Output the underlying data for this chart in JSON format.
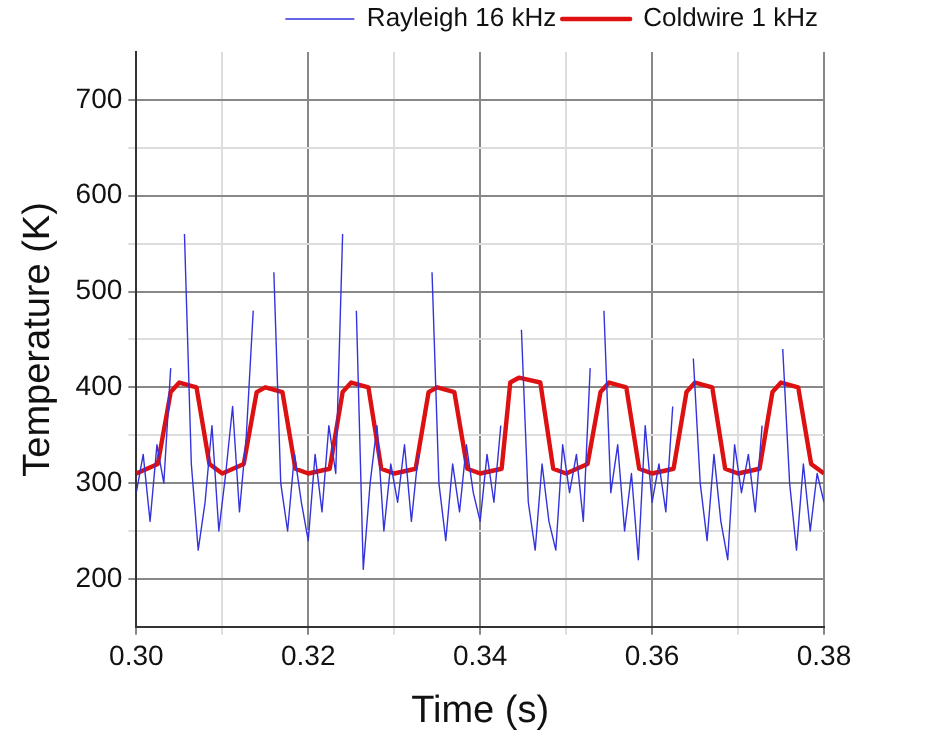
{
  "chart_data": {
    "type": "line",
    "xlabel": "Time (s)",
    "ylabel": "Temperature (K)",
    "xlim": [
      0.3,
      0.38
    ],
    "ylim": [
      150,
      750
    ],
    "xticks": [
      {
        "value": 0.3,
        "label": "0.30"
      },
      {
        "value": 0.31,
        "label": null
      },
      {
        "value": 0.32,
        "label": "0.32"
      },
      {
        "value": 0.33,
        "label": null
      },
      {
        "value": 0.34,
        "label": "0.34"
      },
      {
        "value": 0.35,
        "label": null
      },
      {
        "value": 0.36,
        "label": "0.36"
      },
      {
        "value": 0.37,
        "label": null
      },
      {
        "value": 0.38,
        "label": "0.38"
      }
    ],
    "yticks": [
      200,
      {
        "value": 250,
        "label": null
      },
      300,
      {
        "value": 350,
        "label": null
      },
      400,
      {
        "value": 450,
        "label": null
      },
      500,
      {
        "value": 550,
        "label": null
      },
      600,
      {
        "value": 650,
        "label": null
      },
      700
    ],
    "grid": true,
    "legend": "top right",
    "marker": "none",
    "series": [
      {
        "name": "Rayleigh 16 kHz",
        "color": "#3333dd",
        "x": [
          0.3,
          0.3008,
          0.3016,
          0.3024,
          0.3032,
          0.304,
          0.3048,
          0.3056,
          0.3064,
          0.3072,
          0.308,
          0.3088,
          0.3096,
          0.3104,
          0.3112,
          0.312,
          0.3128,
          0.3136,
          0.3144,
          0.3152,
          0.316,
          0.3168,
          0.3176,
          0.3184,
          0.3192,
          0.32,
          0.3208,
          0.3216,
          0.3224,
          0.3232,
          0.324,
          0.3248,
          0.3256,
          0.3264,
          0.3272,
          0.328,
          0.3288,
          0.3296,
          0.3304,
          0.3312,
          0.332,
          0.3328,
          0.3336,
          0.3344,
          0.3352,
          0.336,
          0.3368,
          0.3376,
          0.3384,
          0.3392,
          0.34,
          0.3408,
          0.3416,
          0.3424,
          0.3432,
          0.344,
          0.3448,
          0.3456,
          0.3464,
          0.3472,
          0.348,
          0.3488,
          0.3496,
          0.3504,
          0.3512,
          0.352,
          0.3528,
          0.3536,
          0.3544,
          0.3552,
          0.356,
          0.3568,
          0.3576,
          0.3584,
          0.3592,
          0.36,
          0.3608,
          0.3616,
          0.3624,
          0.3632,
          0.364,
          0.3648,
          0.3656,
          0.3664,
          0.3672,
          0.368,
          0.3688,
          0.3696,
          0.3704,
          0.3712,
          0.372,
          0.3728,
          0.3736,
          0.3744,
          0.3752,
          0.376,
          0.3768,
          0.3776,
          0.3784,
          0.3792,
          0.38
        ],
        "values": [
          290,
          330,
          260,
          340,
          300,
          420,
          null,
          560,
          320,
          230,
          280,
          360,
          250,
          310,
          380,
          270,
          350,
          480,
          null,
          null,
          520,
          300,
          250,
          330,
          280,
          240,
          330,
          270,
          360,
          310,
          560,
          null,
          480,
          210,
          300,
          360,
          250,
          320,
          280,
          340,
          260,
          330,
          null,
          520,
          300,
          240,
          320,
          270,
          340,
          290,
          260,
          330,
          280,
          360,
          null,
          null,
          460,
          280,
          230,
          320,
          260,
          230,
          340,
          290,
          330,
          260,
          420,
          null,
          480,
          290,
          340,
          250,
          310,
          220,
          360,
          280,
          320,
          270,
          380,
          null,
          null,
          430,
          300,
          240,
          330,
          260,
          220,
          340,
          290,
          330,
          270,
          360,
          null,
          null,
          440,
          300,
          230,
          320,
          250,
          310,
          280
        ]
      },
      {
        "name": "Coldwire 1 kHz",
        "color": "#dd1111",
        "x": [
          0.3,
          0.3025,
          0.304,
          0.305,
          0.307,
          0.3085,
          0.31,
          0.3125,
          0.314,
          0.315,
          0.317,
          0.3185,
          0.32,
          0.3225,
          0.324,
          0.325,
          0.327,
          0.3285,
          0.33,
          0.3325,
          0.334,
          0.335,
          0.337,
          0.3385,
          0.34,
          0.3425,
          0.3435,
          0.3445,
          0.347,
          0.3485,
          0.35,
          0.3525,
          0.354,
          0.355,
          0.357,
          0.3585,
          0.36,
          0.3625,
          0.364,
          0.365,
          0.367,
          0.3685,
          0.37,
          0.3725,
          0.374,
          0.375,
          0.377,
          0.3785,
          0.38
        ],
        "values": [
          310,
          320,
          395,
          405,
          400,
          320,
          310,
          320,
          395,
          400,
          395,
          315,
          310,
          315,
          395,
          405,
          400,
          315,
          310,
          315,
          395,
          400,
          395,
          315,
          310,
          315,
          405,
          410,
          405,
          315,
          310,
          320,
          395,
          405,
          400,
          315,
          310,
          315,
          395,
          405,
          400,
          315,
          310,
          315,
          395,
          405,
          400,
          320,
          310
        ]
      }
    ]
  }
}
